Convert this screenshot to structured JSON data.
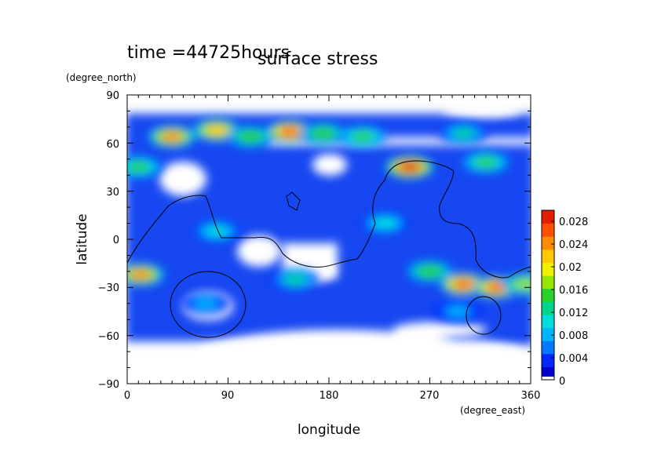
{
  "header": {
    "time_label": "time =44725hours",
    "title": "surface stress"
  },
  "chart_data": {
    "type": "heatmap",
    "title": "surface stress",
    "xlabel": "longitude",
    "ylabel": "latitude",
    "x_unit": "(degree_east)",
    "y_unit": "(degree_north)",
    "xlim": [
      0,
      360
    ],
    "ylim": [
      -90,
      90
    ],
    "x_ticks": [
      "0",
      "90",
      "180",
      "270",
      "360"
    ],
    "y_ticks": [
      "90",
      "60",
      "30",
      "0",
      "−30",
      "−60",
      "−90"
    ],
    "colorbar": {
      "min": 0,
      "max": 0.03,
      "labels": [
        "0.028",
        "0.024",
        "0.02",
        "0.016",
        "0.012",
        "0.008",
        "0.004",
        "0"
      ],
      "colors": [
        "#0000c8",
        "#0028ff",
        "#0078ff",
        "#00b4ff",
        "#00dcdc",
        "#00d28c",
        "#28d228",
        "#96e600",
        "#f0f000",
        "#ffc800",
        "#ff8c00",
        "#ff5000",
        "#e61e00"
      ]
    },
    "blobs": [
      {
        "lon": 40,
        "lat": 64,
        "value": 0.024
      },
      {
        "lon": 80,
        "lat": 68,
        "value": 0.022
      },
      {
        "lon": 110,
        "lat": 64,
        "value": 0.016
      },
      {
        "lon": 145,
        "lat": 67,
        "value": 0.026
      },
      {
        "lon": 175,
        "lat": 66,
        "value": 0.016
      },
      {
        "lon": 210,
        "lat": 64,
        "value": 0.014
      },
      {
        "lon": 300,
        "lat": 66,
        "value": 0.012
      },
      {
        "lon": 252,
        "lat": 45,
        "value": 0.028
      },
      {
        "lon": 320,
        "lat": 48,
        "value": 0.014
      },
      {
        "lon": 10,
        "lat": 45,
        "value": 0.014
      },
      {
        "lon": 12,
        "lat": -22,
        "value": 0.024
      },
      {
        "lon": 300,
        "lat": -28,
        "value": 0.026
      },
      {
        "lon": 330,
        "lat": -30,
        "value": 0.026
      },
      {
        "lon": 355,
        "lat": -28,
        "value": 0.018
      },
      {
        "lon": 270,
        "lat": -20,
        "value": 0.016
      },
      {
        "lon": 150,
        "lat": -25,
        "value": 0.012
      },
      {
        "lon": 230,
        "lat": 10,
        "value": 0.01
      },
      {
        "lon": 80,
        "lat": 5,
        "value": 0.01
      },
      {
        "lon": 70,
        "lat": -40,
        "value": 0.008
      },
      {
        "lon": 295,
        "lat": -45,
        "value": 0.008
      }
    ]
  }
}
